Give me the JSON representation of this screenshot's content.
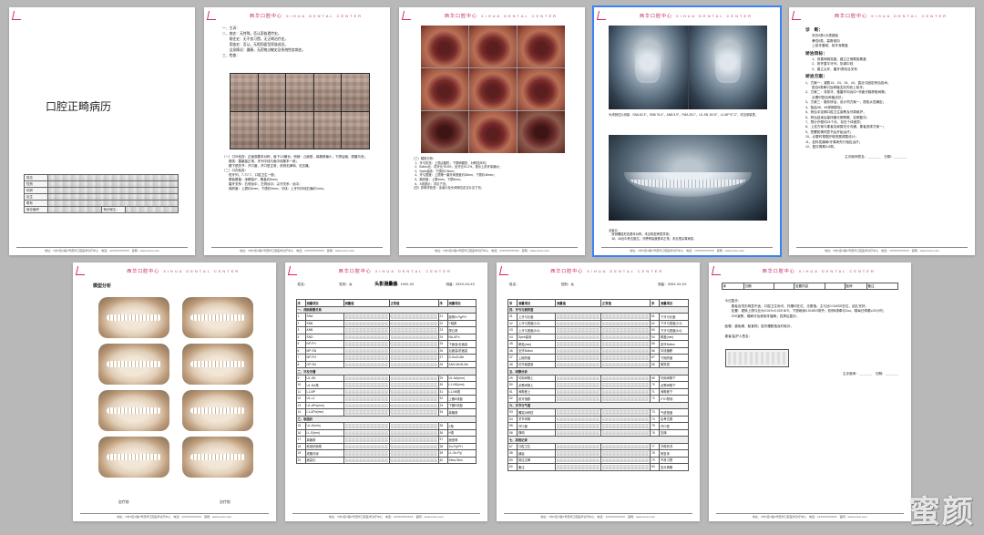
{
  "brand": {
    "cn": "西华口腔中心",
    "en": "XIHUA DENTAL CENTER"
  },
  "footer": "地址：X市X区X路X号西华口腔医学诊疗中心　电话：1XXXXXXXXXX　官网：www.xxxxx.com",
  "watermark": "蜜颜",
  "selected_page_index": 3,
  "page1": {
    "title": "口腔正畸病历",
    "fields": [
      {
        "label": "姓名",
        "v": ""
      },
      {
        "label": "性别",
        "v": ""
      },
      {
        "label": "年龄",
        "v": ""
      },
      {
        "label": "出生",
        "v": ""
      },
      {
        "label": "联系",
        "v": ""
      },
      {
        "label": "就诊编号",
        "v": "",
        "extra": "就诊医生："
      }
    ]
  },
  "page2": {
    "info_lines": [
      "一、主诉：",
      "二、病史：无特殊，否认家族遗传史。",
      "　　既往史：无不良习惯，无正畸治疗史。",
      "　　家族史：否认，无相同面型家族成员。",
      "　　全身情况：健康，无药物过敏史及系统性疾病史。",
      "三、检查："
    ],
    "faces_caption": "面像：",
    "text2": [
      "（一）口外检查：正面观基本对称，面下1/3略长；侧貌：凸面型，鼻唇角偏小，下颌后缩，颏唇沟浅；",
      "　　微笑：露龈量正常，牙列中线与面中线基本一致；",
      "　　颞下颌关节：开口度、开口型正常，双侧无弹响、无压痛。",
      "（二）口内检查：",
      "　　恒牙列，7-7/7-7，口腔卫生一般；",
      "　　覆𬌗覆盖：深覆𬌗Ⅱ°，覆盖约5mm；",
      "　　磨牙关系：右侧远中，左侧远中；尖牙关系：远中；",
      "　　拥挤度：上颌约4mm，下颌约3mm；中线：上牙列中线右偏约1mm。"
    ]
  },
  "page3": {
    "text": [
      "（三）模型分析：",
      "　1、牙弓形态：上颌尖圆形，下颌卵圆形，对称性尚可；",
      "　2、Bolton比：前牙比78.6%，全牙比91.2%，提示上前牙量偏大；",
      "　3、Spee曲线：下颌约2.5mm；",
      "　4、牙弓宽度：上颌第一磨牙间宽度约52mm，下颌约46mm；",
      "　5、拥挤度：上颌4mm，下颌3mm；",
      "　6、X线提示：详见下页；",
      "（四）影像学检查：全景片及头颅侧位定位片见下页。"
    ]
  },
  "page4": {
    "text1": [
      "头颅侧位片测量：SNA 82.3°，SNB 76.4°，ANB 5.9°，FMA 28.1°，U1-SN 110.5°，L1-MP 97.2°，详见测量表。"
    ],
    "text2": [
      "全景片：",
      "　双侧髁突形态基本对称，未见明显骨质异常；",
      "　38、48近中低位阻生；牙槽骨高度基本正常；未见根尖周病变。"
    ]
  },
  "page5": {
    "diag_title": "诊　断：",
    "diag": [
      "安氏Ⅱ类1分类错𬌗",
      "骨性Ⅱ类，高角倾向",
      "上前牙唇倾，前牙深覆盖"
    ],
    "goal_title": "矫治目标：",
    "goal": [
      "改善侧貌突度，建立正常覆𬌗覆盖",
      "排齐整平牙列，协调中线",
      "建立尖牙、磨牙Ⅰ类咬合关系"
    ],
    "plan_title": "矫治方案：",
    "plan": [
      "1、方案一：减数14、24、34、44，直丝弓固定矫治技术；",
      "　　配合Ⅱ类牵引及种植支抗内收上前牙；",
      "2、方案二：非拔牙，推磨牙向远中+邻面去釉获取间隙；",
      "　　必要时配合种植支抗；",
      "3、方案三：隐形矫治，设计同方案一，视依从性确定；",
      "4、智齿38、48择期拔除；",
      "5、矫治中定期口腔卫生宣教及牙周维护；",
      "6、矫治结束后保持器长期佩戴，定期复诊；",
      "7、预计疗程约24个月，存在个体差异；",
      "8、上述方案与患者及家属充分沟通，患者选择方案一；",
      "9、签署知情同意书后开始治疗；",
      "10、必要时根据疗程进展调整设计；",
      "11、如伴发龋病/牙周病先行相应治疗；",
      "12、复诊周期4-6周。",
      "",
      "　　　　　　　　　　　　主诊医师签名：＿＿＿＿　日期：＿＿＿＿"
    ]
  },
  "page6": {
    "title": "模型分析",
    "cap_left": "治疗前",
    "cap_right": "治疗前"
  },
  "page7": {
    "form_title": "头影测量值",
    "head": {
      "name": "姓名：",
      "sex": "性别：女",
      "birth": "出生日期：19XX-XX",
      "date": "测量：20XX-XX-XX"
    },
    "cols": [
      "序",
      "测量项目",
      "测量值",
      "正常值",
      "序",
      "测量项目"
    ],
    "sections": [
      {
        "title": "一、颅面骨骼关系",
        "rows": [
          [
            "1",
            "SNA",
            "",
            "82±3",
            "21",
            "面角N-Pg/FH"
          ],
          [
            "2",
            "SNB",
            "",
            "80±3",
            "22",
            "Y轴角"
          ],
          [
            "3",
            "ANB",
            "",
            "2±2",
            "23",
            "颌凸角"
          ],
          [
            "4",
            "SND",
            "",
            "77±3",
            "24",
            "NA-APo"
          ],
          [
            "5",
            "NP-FH",
            "",
            "85±3",
            "25",
            "下面高/全面高"
          ],
          [
            "6",
            "MP-SN",
            "",
            "32±5",
            "26",
            "后面高/前面高"
          ],
          [
            "7",
            "MP-FH",
            "",
            "27±5",
            "27",
            "S-Go/N-Me"
          ],
          [
            "8",
            "OP-SN",
            "",
            "19±4",
            "28",
            "ANS-Me/N-Me"
          ]
        ]
      },
      {
        "title": "二、牙及牙槽",
        "rows": [
          [
            "9",
            "U1-SN",
            "",
            "106±6",
            "29",
            "U1-NA(mm)"
          ],
          [
            "10",
            "U1-NA角",
            "",
            "22±5",
            "30",
            "L1-NB(mm)"
          ],
          [
            "11",
            "L1-MP",
            "",
            "97±6",
            "31",
            "L1-NB角"
          ],
          [
            "12",
            "U1-L1",
            "",
            "124±8",
            "32",
            "上唇E线距"
          ],
          [
            "13",
            "U1-APo(mm)",
            "",
            "6±2",
            "33",
            "下唇E线距"
          ],
          [
            "14",
            "L1-APo(mm)",
            "",
            "2±2",
            "34",
            "鼻唇角"
          ]
        ]
      },
      {
        "title": "三、软组织",
        "rows": [
          [
            "15",
            "UL-E(mm)",
            "",
            "-1±2",
            "35",
            "Z角"
          ],
          [
            "16",
            "LL-E(mm)",
            "",
            "1±2",
            "36",
            "H角"
          ],
          [
            "17",
            "鼻唇角",
            "",
            "97±10",
            "37",
            "面型角"
          ],
          [
            "18",
            "软组织面角",
            "",
            "90±4",
            "38",
            "Sn-Pg'/FH"
          ],
          [
            "19",
            "颏唇沟深",
            "",
            "4±2",
            "39",
            "LL-Sn-Pg'"
          ],
          [
            "20",
            "面高比",
            "",
            "55±3",
            "40",
            "Stms-Stmi"
          ]
        ]
      }
    ]
  },
  "page8": {
    "head": {
      "name": "姓名：",
      "sex": "性别：女",
      "date": "测量：20XX-XX-XX"
    },
    "cols": [
      "序",
      "测量项目",
      "测量值",
      "正常值",
      "序",
      "测量项目"
    ],
    "sections": [
      {
        "title": "四、牙弓与拥挤度",
        "rows": [
          [
            "41",
            "上牙弓长度",
            "",
            "",
            "61",
            "下牙弓长度"
          ],
          [
            "42",
            "上牙弓宽度(3-3)",
            "",
            "",
            "62",
            "下牙弓宽度(3-3)"
          ],
          [
            "43",
            "上牙弓宽度(6-6)",
            "",
            "",
            "63",
            "下牙弓宽度(6-6)"
          ],
          [
            "44",
            "Spee曲深",
            "",
            "",
            "64",
            "覆盖(mm)"
          ],
          [
            "45",
            "覆𬌗(mm)",
            "",
            "",
            "65",
            "前牙Bolton"
          ],
          [
            "46",
            "全牙Bolton",
            "",
            "",
            "66",
            "中线偏移"
          ],
          [
            "47",
            "上拥挤度",
            "",
            "",
            "67",
            "下拥挤度"
          ],
          [
            "48",
            "切牙暴露量",
            "",
            "",
            "68",
            "微笑弧"
          ]
        ]
      },
      {
        "title": "五、间隙分析",
        "rows": [
          [
            "49",
            "可用间隙上",
            "",
            "",
            "69",
            "可用间隙下"
          ],
          [
            "50",
            "必需间隙上",
            "",
            "",
            "70",
            "必需间隙下"
          ],
          [
            "51",
            "间隙差上",
            "",
            "",
            "71",
            "间隙差下"
          ],
          [
            "52",
            "拔牙指数",
            "",
            "",
            "72",
            "VTO预测"
          ]
        ]
      },
      {
        "title": "六、关节与气道",
        "rows": [
          [
            "53",
            "髁突对称性",
            "",
            "",
            "73",
            "气道宽度"
          ],
          [
            "54",
            "关节间隙",
            "",
            "",
            "74",
            "舌骨位置"
          ],
          [
            "55",
            "开口度",
            "",
            "",
            "75",
            "开口型"
          ],
          [
            "56",
            "弹响",
            "",
            "",
            "76",
            "压痛"
          ]
        ]
      },
      {
        "title": "七、其他记录",
        "rows": [
          [
            "57",
            "口腔卫生",
            "",
            "",
            "77",
            "牙周状况"
          ],
          [
            "58",
            "龋齿",
            "",
            "",
            "78",
            "修复体"
          ],
          [
            "59",
            "既往正畸",
            "",
            "",
            "79",
            "不良习惯"
          ],
          [
            "60",
            "备注",
            "",
            "",
            "80",
            "复诊周期"
          ]
        ]
      }
    ]
  },
  "page9": {
    "topbar": [
      "序",
      "日期",
      "",
      "处置内容",
      "",
      "医师",
      "备注"
    ],
    "title_row": "· 复诊",
    "body": [
      "今日复诊：",
      "　　患者自觉无明显不适，口腔卫生尚可，托槽均在位，无脱落。主弓丝0.018SS在位，结扎完好。",
      "　　处置：更换上颌弓丝为0.019×0.025 NiTi，下颌继续0.018SS排齐；双侧Ⅱ类牵引2oz，嘱每日佩戴≥20小时；",
      "　　OHI宣教，嘱刷牙及使用牙缝刷；四周后复诊。",
      "",
      "医嘱：避免硬、黏食物；若托槽脱落及时就诊。",
      "",
      "患者/监护人签名："
    ],
    "sign_right": "主诊医师：＿＿＿＿　日期：＿＿＿＿"
  }
}
